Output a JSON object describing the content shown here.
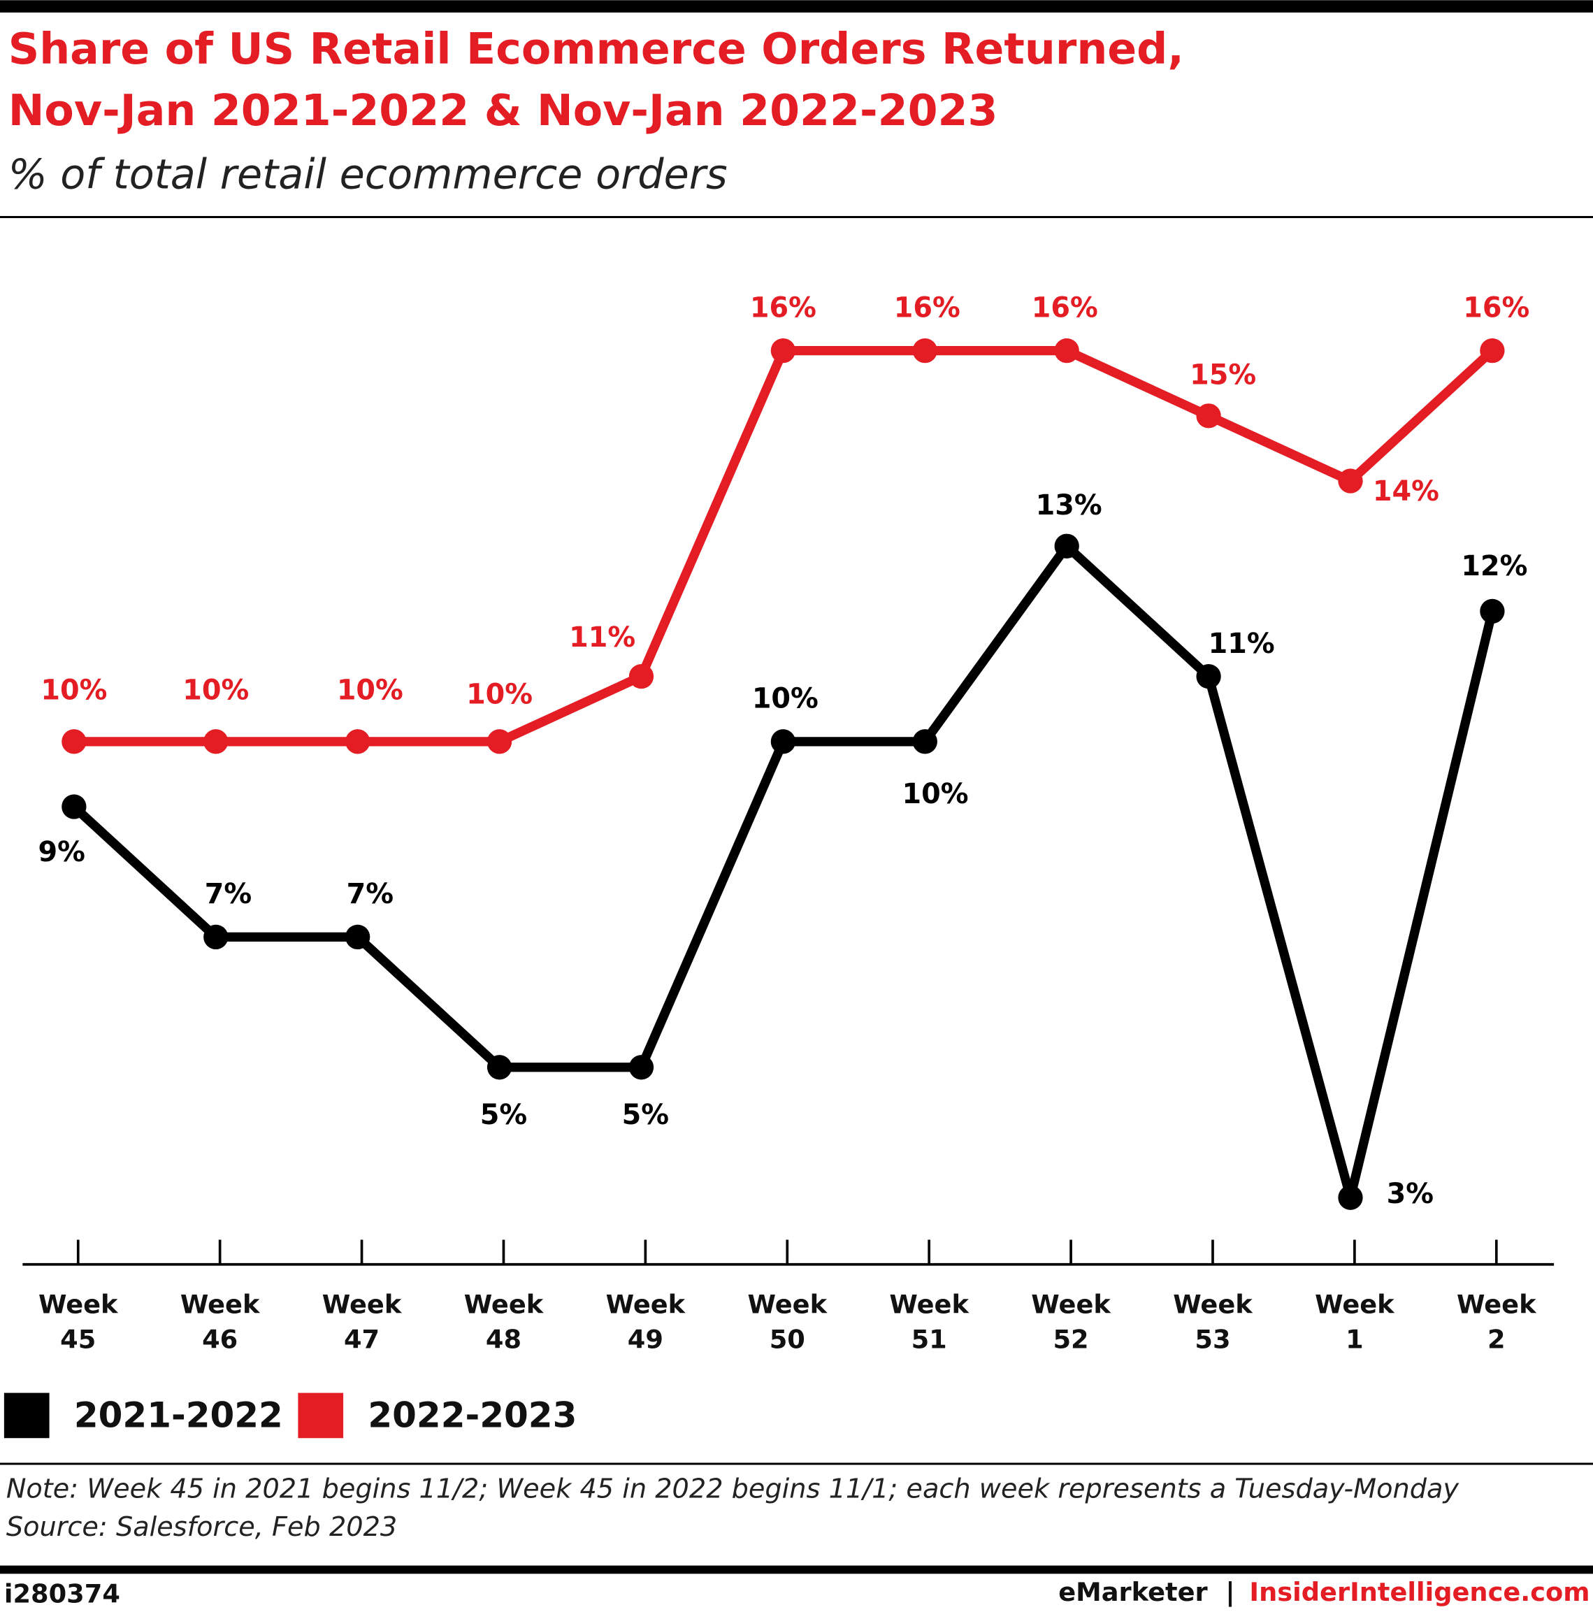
{
  "chart_data": {
    "type": "line",
    "title": "Share of US Retail Ecommerce Orders Returned,",
    "title_line2": "Nov-Jan 2021-2022 & Nov-Jan 2022-2023",
    "subtitle": "% of total retail ecommerce orders",
    "categories": [
      "Week 45",
      "Week 46",
      "Week 47",
      "Week 48",
      "Week 49",
      "Week 50",
      "Week 51",
      "Week 52",
      "Week 53",
      "Week 1",
      "Week 2"
    ],
    "series": [
      {
        "name": "2021-2022",
        "color": "#000000",
        "values": [
          9,
          7,
          7,
          5,
          5,
          10,
          10,
          13,
          11,
          3,
          12
        ],
        "value_labels": [
          "9%",
          "7%",
          "7%",
          "5%",
          "5%",
          "10%",
          "10%",
          "13%",
          "11%",
          "3%",
          "12%"
        ]
      },
      {
        "name": "2022-2023",
        "color": "#e41c23",
        "values": [
          10,
          10,
          10,
          10,
          11,
          16,
          16,
          16,
          15,
          14,
          16
        ],
        "value_labels": [
          "10%",
          "10%",
          "10%",
          "10%",
          "11%",
          "16%",
          "16%",
          "16%",
          "15%",
          "14%",
          "16%"
        ]
      }
    ],
    "note": "Note: Week 45 in 2021 begins 11/2; Week 45 in 2022 begins 11/1; each week represents a Tuesday-Monday",
    "source": "Source: Salesforce, Feb 2023",
    "chart_id": "i280374",
    "footer_brand": "eMarketer",
    "footer_separator": "|",
    "footer_site": "InsiderIntelligence.com"
  }
}
